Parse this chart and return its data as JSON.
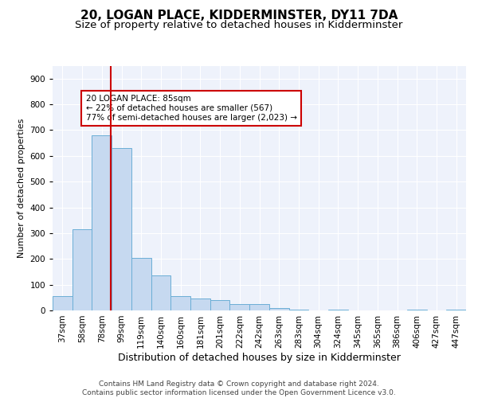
{
  "title1": "20, LOGAN PLACE, KIDDERMINSTER, DY11 7DA",
  "title2": "Size of property relative to detached houses in Kidderminster",
  "xlabel": "Distribution of detached houses by size in Kidderminster",
  "ylabel": "Number of detached properties",
  "categories": [
    "37sqm",
    "58sqm",
    "78sqm",
    "99sqm",
    "119sqm",
    "140sqm",
    "160sqm",
    "181sqm",
    "201sqm",
    "222sqm",
    "242sqm",
    "263sqm",
    "283sqm",
    "304sqm",
    "324sqm",
    "345sqm",
    "365sqm",
    "386sqm",
    "406sqm",
    "427sqm",
    "447sqm"
  ],
  "values": [
    55,
    315,
    680,
    630,
    205,
    135,
    55,
    45,
    40,
    25,
    25,
    8,
    3,
    0,
    3,
    0,
    0,
    0,
    3,
    0,
    3
  ],
  "bar_color": "#c6d9f0",
  "bar_edge_color": "#6baed6",
  "vline_color": "#cc0000",
  "vline_pos": 2.45,
  "annotation_text": "20 LOGAN PLACE: 85sqm\n← 22% of detached houses are smaller (567)\n77% of semi-detached houses are larger (2,023) →",
  "annotation_box_color": "#ffffff",
  "annotation_box_edge": "#cc0000",
  "footer": "Contains HM Land Registry data © Crown copyright and database right 2024.\nContains public sector information licensed under the Open Government Licence v3.0.",
  "ylim": [
    0,
    950
  ],
  "yticks": [
    0,
    100,
    200,
    300,
    400,
    500,
    600,
    700,
    800,
    900
  ],
  "background_color": "#eef2fb",
  "grid_color": "#ffffff",
  "title1_fontsize": 11,
  "title2_fontsize": 9.5,
  "xlabel_fontsize": 9,
  "ylabel_fontsize": 8,
  "tick_fontsize": 7.5,
  "footer_fontsize": 6.5,
  "annot_fontsize": 7.5
}
